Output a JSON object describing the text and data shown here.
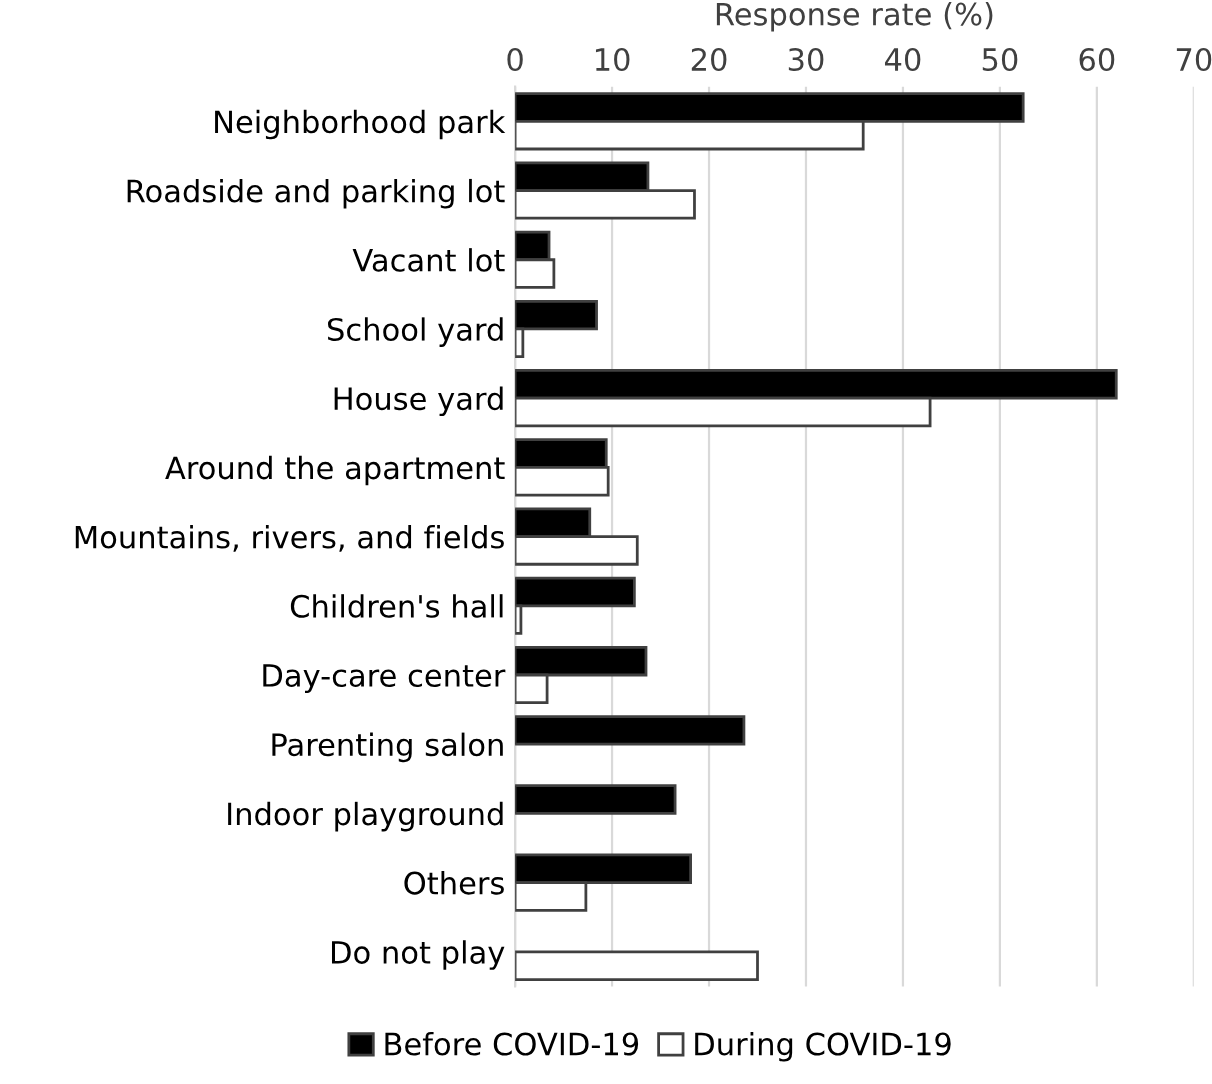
{
  "chart_data": {
    "type": "bar",
    "orientation": "horizontal",
    "xlabel": "Response rate (%)",
    "categories": [
      "Neighborhood park",
      "Roadside and parking lot",
      "Vacant lot",
      "School yard",
      "House yard",
      "Around the apartment",
      "Mountains, rivers, and fields",
      "Children's hall",
      "Day-care center",
      "Parenting salon",
      "Indoor playground",
      "Others",
      "Do not play"
    ],
    "series": [
      {
        "name": "Before COVID-19",
        "color": "#000000",
        "values": [
          52.4,
          13.7,
          3.5,
          8.4,
          62.0,
          9.4,
          7.7,
          12.3,
          13.5,
          23.6,
          16.5,
          18.1,
          null
        ]
      },
      {
        "name": "During COVID-19",
        "color": "#ffffff",
        "values": [
          35.9,
          18.5,
          4.0,
          0.8,
          42.8,
          9.6,
          12.6,
          0.6,
          3.3,
          null,
          null,
          7.3,
          25.0
        ]
      }
    ],
    "xlim": [
      0,
      70
    ],
    "xticks": [
      0,
      10,
      20,
      30,
      40,
      50,
      60,
      70
    ],
    "grid": "x",
    "legend": "bottom"
  }
}
